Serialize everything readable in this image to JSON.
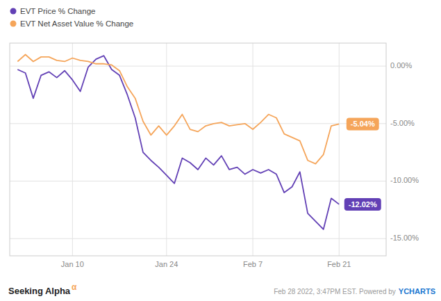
{
  "chart_data": {
    "type": "line",
    "x": [
      0,
      1,
      2,
      3,
      4,
      5,
      6,
      7,
      8,
      9,
      10,
      11,
      12,
      13,
      14,
      15,
      16,
      17,
      18,
      19,
      20,
      21,
      22,
      23,
      24,
      25,
      26,
      27,
      28,
      29,
      30,
      31,
      32,
      33,
      34,
      35,
      36,
      37,
      38,
      39,
      40,
      41
    ],
    "series": [
      {
        "name": "EVT Price % Change",
        "color": "#6240b5",
        "values": [
          -0.3,
          -0.6,
          -2.8,
          -0.8,
          -0.5,
          -1.0,
          -0.4,
          -1.2,
          -2.2,
          -0.1,
          0.6,
          0.9,
          -0.3,
          -0.8,
          -2.5,
          -4.5,
          -7.5,
          -8.2,
          -8.8,
          -9.5,
          -10.2,
          -8.0,
          -8.4,
          -9.0,
          -8.0,
          -8.6,
          -7.8,
          -9.0,
          -8.8,
          -9.4,
          -9.0,
          -9.3,
          -9.0,
          -9.4,
          -11.0,
          -10.5,
          -9.2,
          -12.8,
          -13.5,
          -14.2,
          -11.5,
          -12.02
        ]
      },
      {
        "name": "EVT Net Asset Value % Change",
        "color": "#f5a55a",
        "values": [
          0.4,
          1.0,
          0.4,
          0.8,
          0.8,
          0.5,
          0.4,
          0.7,
          0.5,
          0.4,
          0.2,
          0.2,
          0.1,
          -0.4,
          -1.8,
          -2.8,
          -4.8,
          -6.0,
          -5.2,
          -6.0,
          -5.2,
          -4.2,
          -5.5,
          -5.7,
          -5.2,
          -5.0,
          -4.9,
          -5.2,
          -5.1,
          -5.0,
          -5.5,
          -4.9,
          -4.2,
          -4.5,
          -5.9,
          -6.2,
          -6.5,
          -8.2,
          -8.5,
          -7.7,
          -5.2,
          -5.04
        ]
      }
    ],
    "xlim": [
      -1,
      47
    ],
    "xticks": [
      {
        "value": 7,
        "label": "Jan 10"
      },
      {
        "value": 19,
        "label": "Jan 24"
      },
      {
        "value": 30,
        "label": "Feb 7"
      },
      {
        "value": 41,
        "label": "Feb 21"
      }
    ],
    "ylim": [
      -16.5,
      2.0
    ],
    "yticks": [
      {
        "value": 0,
        "label": "0.00%"
      },
      {
        "value": -5,
        "label": "-5.00%"
      },
      {
        "value": -10,
        "label": "-10.00%"
      },
      {
        "value": -15,
        "label": "-15.00%"
      }
    ],
    "grid": true,
    "legend": "top",
    "annotations": [
      {
        "text": "-5.04%",
        "x": 41,
        "y": -5.04,
        "color": "#f5a55a"
      },
      {
        "text": "-12.02%",
        "x": 41,
        "y": -12.02,
        "color": "#6240b5"
      }
    ],
    "footer_left": [
      "Seeking Alpha",
      "α"
    ],
    "footer_right": [
      "Feb 28 2022, 3:47PM EST.  Powered by",
      "YCHARTS"
    ]
  }
}
